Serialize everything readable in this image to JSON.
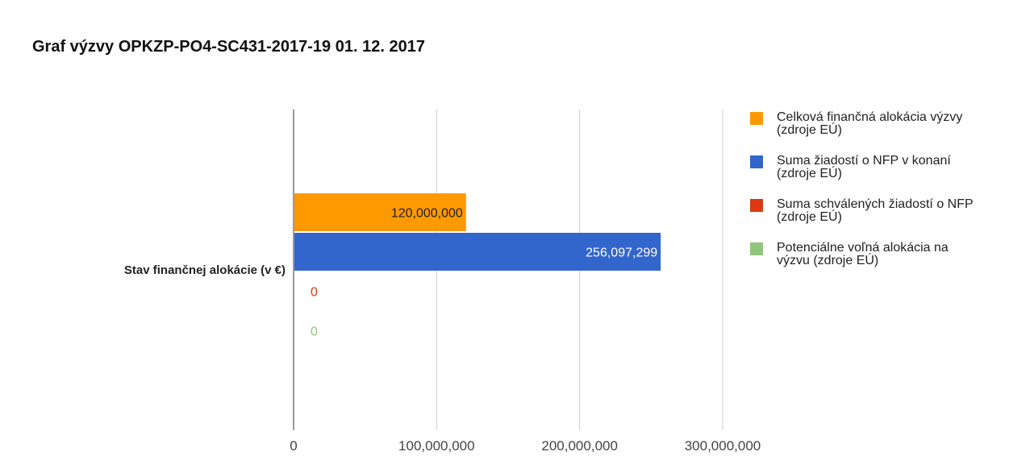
{
  "chart_data": {
    "type": "bar",
    "orientation": "horizontal",
    "title": "Graf výzvy OPKZP-PO4-SC431-2017-19  01. 12. 2017",
    "categories": [
      "Stav finančnej alokácie (v €)"
    ],
    "series": [
      {
        "name_lines": [
          "Celková finančná alokácia výzvy",
          "(zdroje EÚ)"
        ],
        "value": 120000000,
        "value_label": "120,000,000",
        "color": "#ff9900",
        "label_color": "#222222"
      },
      {
        "name_lines": [
          "Suma žiadostí o NFP v konaní",
          "(zdroje EÚ)"
        ],
        "value": 256097299,
        "value_label": "256,097,299",
        "color": "#3366cc",
        "label_color": "#ffffff"
      },
      {
        "name_lines": [
          "Suma schválených žiadostí o NFP",
          "(zdroje EÚ)"
        ],
        "value": 0,
        "value_label": "0",
        "color": "#dc3912",
        "label_color": "#dc3912"
      },
      {
        "name_lines": [
          "Potenciálne voľná alokácia na",
          "výzvu (zdroje EÚ)"
        ],
        "value": 0,
        "value_label": "0",
        "color": "#93c47d",
        "label_color": "#93c47d"
      }
    ],
    "x_ticks": [
      0,
      100000000,
      200000000,
      300000000
    ],
    "x_tick_labels": [
      "0",
      "100,000,000",
      "200,000,000",
      "300,000,000"
    ],
    "xlim": [
      0,
      300000000
    ],
    "grid": true,
    "legend_position": "right"
  }
}
